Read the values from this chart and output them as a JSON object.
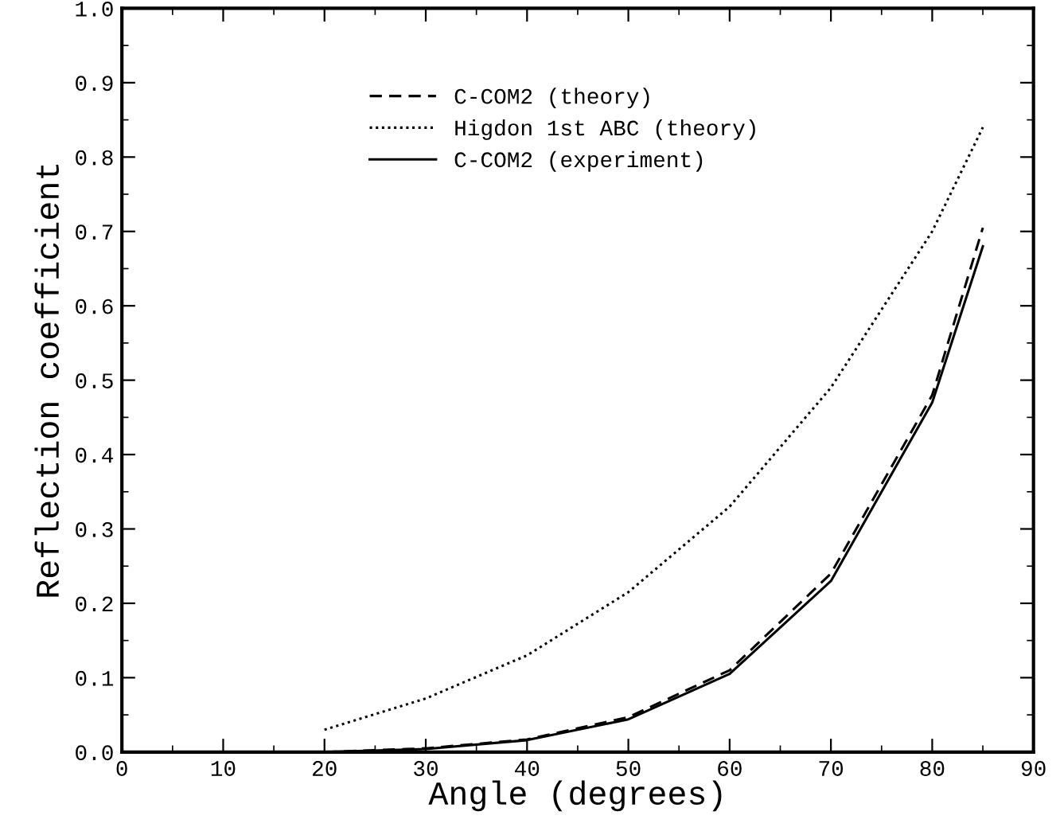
{
  "chart_data": {
    "type": "line",
    "xlabel": "Angle (degrees)",
    "ylabel": "Reflection coefficient",
    "x": [
      20,
      30,
      40,
      50,
      60,
      70,
      80,
      85
    ],
    "series": [
      {
        "name": "C-COM2 (theory)",
        "color": "#000000",
        "line_style": "dashed",
        "values": [
          0.0,
          0.005,
          0.017,
          0.047,
          0.11,
          0.24,
          0.48,
          0.705
        ]
      },
      {
        "name": "Higdon 1st ABC (theory)",
        "color": "#000000",
        "line_style": "dotted",
        "values": [
          0.03,
          0.072,
          0.13,
          0.215,
          0.33,
          0.49,
          0.7,
          0.84
        ]
      },
      {
        "name": "C-COM2 (experiment)",
        "color": "#000000",
        "line_style": "solid",
        "values": [
          0.0,
          0.004,
          0.016,
          0.044,
          0.105,
          0.23,
          0.47,
          0.68
        ]
      }
    ],
    "xlim": [
      0,
      90
    ],
    "ylim": [
      0,
      1.0
    ],
    "xticks": [
      0,
      10,
      20,
      30,
      40,
      50,
      60,
      70,
      80,
      90
    ],
    "yticks": [
      {
        "value": 0,
        "label": "0.0"
      },
      0.1,
      0.2,
      0.3,
      0.4,
      0.5,
      0.6,
      0.7,
      0.8,
      0.9,
      {
        "value": 1,
        "label": "1.0"
      }
    ],
    "grid": false,
    "legend": "top left",
    "marker": "none"
  }
}
